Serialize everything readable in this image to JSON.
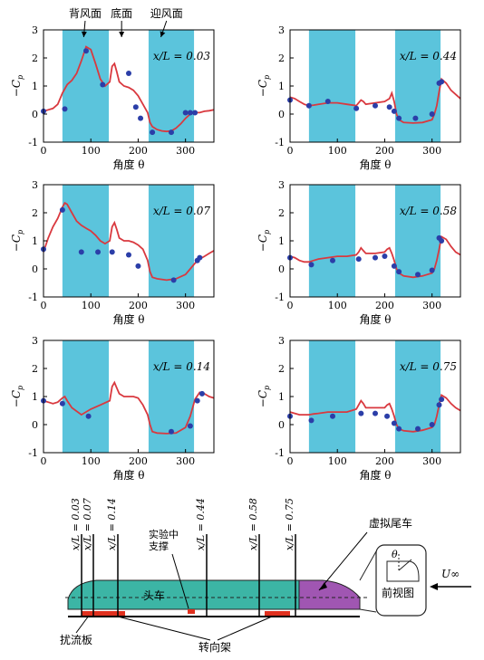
{
  "chart_data": [
    {
      "type": "line",
      "ylabel": "−C",
      "ylabel_sub": "p",
      "xlabel": "角度 θ",
      "xlim": [
        0,
        360
      ],
      "ylim": [
        -1,
        3
      ],
      "xticks": [
        0,
        100,
        200,
        300
      ],
      "yticks": [
        -1,
        0,
        1,
        2,
        3
      ],
      "annotation": "x/L = 0.03",
      "top_labels": [
        "背风面",
        "底面",
        "迎风面"
      ],
      "bands": [
        [
          40,
          138
        ],
        [
          222,
          318
        ]
      ],
      "line": {
        "x": [
          0,
          10,
          20,
          30,
          40,
          50,
          60,
          70,
          80,
          90,
          100,
          110,
          120,
          130,
          140,
          145,
          150,
          155,
          160,
          170,
          180,
          190,
          200,
          210,
          220,
          225,
          230,
          240,
          250,
          260,
          270,
          280,
          290,
          300,
          310,
          320,
          330,
          340,
          350,
          360
        ],
        "y": [
          0.1,
          0.15,
          0.2,
          0.35,
          0.75,
          1.05,
          1.2,
          1.45,
          1.9,
          2.4,
          2.3,
          1.8,
          1.25,
          1.0,
          1.15,
          1.7,
          1.8,
          1.5,
          1.15,
          1.0,
          0.95,
          0.85,
          0.65,
          0.35,
          0.05,
          -0.3,
          -0.45,
          -0.55,
          -0.6,
          -0.62,
          -0.6,
          -0.5,
          -0.35,
          -0.15,
          0.0,
          0.05,
          0.05,
          0.1,
          0.12,
          0.15
        ]
      },
      "points": {
        "x": [
          0,
          45,
          90,
          125,
          180,
          195,
          205,
          230,
          270,
          300,
          310,
          320
        ],
        "y": [
          0.1,
          0.18,
          2.25,
          1.05,
          1.45,
          0.25,
          -0.15,
          -0.65,
          -0.65,
          0.05,
          0.05,
          0.05
        ]
      }
    },
    {
      "type": "line",
      "ylabel": "−C",
      "ylabel_sub": "p",
      "xlabel": "角度 θ",
      "xlim": [
        0,
        360
      ],
      "ylim": [
        -1,
        3
      ],
      "xticks": [
        0,
        100,
        200,
        300
      ],
      "yticks": [
        -1,
        0,
        1,
        2,
        3
      ],
      "annotation": "x/L = 0.44",
      "bands": [
        [
          40,
          138
        ],
        [
          222,
          318
        ]
      ],
      "line": {
        "x": [
          0,
          10,
          20,
          30,
          40,
          50,
          60,
          80,
          100,
          120,
          140,
          145,
          150,
          155,
          160,
          180,
          200,
          210,
          215,
          220,
          225,
          230,
          240,
          260,
          280,
          300,
          305,
          310,
          315,
          320,
          330,
          340,
          350,
          360
        ],
        "y": [
          0.6,
          0.55,
          0.45,
          0.35,
          0.3,
          0.32,
          0.35,
          0.4,
          0.4,
          0.35,
          0.3,
          0.4,
          0.5,
          0.45,
          0.35,
          0.4,
          0.45,
          0.55,
          0.75,
          0.45,
          0.0,
          -0.2,
          -0.3,
          -0.32,
          -0.3,
          -0.2,
          0.0,
          0.3,
          0.8,
          1.25,
          1.1,
          0.85,
          0.7,
          0.55
        ]
      },
      "points": {
        "x": [
          0,
          40,
          80,
          140,
          180,
          210,
          220,
          230,
          265,
          300,
          315,
          320
        ],
        "y": [
          0.5,
          0.3,
          0.45,
          0.2,
          0.3,
          0.25,
          0.1,
          -0.15,
          -0.15,
          0.0,
          1.1,
          1.15
        ]
      }
    },
    {
      "type": "line",
      "ylabel": "−C",
      "ylabel_sub": "p",
      "xlabel": "角度 θ",
      "xlim": [
        0,
        360
      ],
      "ylim": [
        -1,
        3
      ],
      "xticks": [
        0,
        100,
        200,
        300
      ],
      "yticks": [
        -1,
        0,
        1,
        2,
        3
      ],
      "annotation": "x/L = 0.07",
      "bands": [
        [
          40,
          138
        ],
        [
          222,
          318
        ]
      ],
      "line": {
        "x": [
          0,
          10,
          20,
          30,
          40,
          45,
          50,
          60,
          70,
          80,
          90,
          100,
          110,
          120,
          130,
          140,
          145,
          150,
          155,
          160,
          170,
          180,
          190,
          200,
          210,
          220,
          225,
          230,
          240,
          260,
          280,
          300,
          310,
          320,
          330,
          340,
          350,
          360
        ],
        "y": [
          0.6,
          1.1,
          1.5,
          1.8,
          2.2,
          2.35,
          2.3,
          2.0,
          1.7,
          1.55,
          1.45,
          1.35,
          1.2,
          1.0,
          0.9,
          1.0,
          1.5,
          1.65,
          1.4,
          1.1,
          1.0,
          1.0,
          0.95,
          0.85,
          0.7,
          0.3,
          -0.1,
          -0.3,
          -0.35,
          -0.4,
          -0.35,
          -0.2,
          0.0,
          0.2,
          0.35,
          0.45,
          0.55,
          0.65
        ]
      },
      "points": {
        "x": [
          0,
          40,
          80,
          115,
          145,
          180,
          200,
          275,
          325,
          330
        ],
        "y": [
          0.7,
          2.1,
          0.6,
          0.6,
          0.6,
          0.5,
          0.1,
          -0.4,
          0.3,
          0.4
        ]
      }
    },
    {
      "type": "line",
      "ylabel": "−C",
      "ylabel_sub": "p",
      "xlabel": "角度 θ",
      "xlim": [
        0,
        360
      ],
      "ylim": [
        -1,
        3
      ],
      "xticks": [
        0,
        100,
        200,
        300
      ],
      "yticks": [
        -1,
        0,
        1,
        2,
        3
      ],
      "annotation": "x/L = 0.58",
      "bands": [
        [
          40,
          138
        ],
        [
          222,
          318
        ]
      ],
      "line": {
        "x": [
          0,
          10,
          20,
          30,
          40,
          50,
          60,
          80,
          100,
          120,
          140,
          145,
          150,
          155,
          160,
          180,
          200,
          205,
          210,
          215,
          220,
          225,
          230,
          240,
          260,
          280,
          300,
          305,
          310,
          315,
          320,
          330,
          340,
          350,
          360
        ],
        "y": [
          0.45,
          0.4,
          0.3,
          0.25,
          0.25,
          0.3,
          0.35,
          0.4,
          0.45,
          0.45,
          0.5,
          0.6,
          0.75,
          0.65,
          0.55,
          0.55,
          0.6,
          0.7,
          0.75,
          0.55,
          0.3,
          0.0,
          -0.15,
          -0.25,
          -0.3,
          -0.25,
          -0.15,
          0.0,
          0.3,
          0.7,
          1.15,
          1.05,
          0.8,
          0.6,
          0.5
        ]
      },
      "points": {
        "x": [
          0,
          45,
          90,
          145,
          180,
          200,
          220,
          230,
          270,
          300,
          315,
          320
        ],
        "y": [
          0.4,
          0.15,
          0.3,
          0.35,
          0.4,
          0.45,
          0.1,
          -0.1,
          -0.2,
          -0.05,
          1.1,
          1.0
        ]
      }
    },
    {
      "type": "line",
      "ylabel": "−C",
      "ylabel_sub": "p",
      "xlabel": "角度 θ",
      "xlim": [
        0,
        360
      ],
      "ylim": [
        -1,
        3
      ],
      "xticks": [
        0,
        100,
        200,
        300
      ],
      "yticks": [
        -1,
        0,
        1,
        2,
        3
      ],
      "annotation": "x/L = 0.14",
      "bands": [
        [
          40,
          138
        ],
        [
          222,
          318
        ]
      ],
      "line": {
        "x": [
          0,
          10,
          20,
          30,
          40,
          45,
          50,
          60,
          80,
          100,
          120,
          140,
          145,
          150,
          155,
          160,
          170,
          180,
          190,
          200,
          210,
          220,
          225,
          230,
          240,
          260,
          280,
          300,
          310,
          320,
          330,
          340,
          350,
          360
        ],
        "y": [
          0.85,
          0.8,
          0.75,
          0.8,
          0.95,
          1.0,
          0.85,
          0.6,
          0.35,
          0.55,
          0.7,
          0.85,
          1.35,
          1.5,
          1.3,
          1.1,
          1.0,
          1.0,
          1.0,
          0.95,
          0.7,
          0.35,
          0.0,
          -0.25,
          -0.3,
          -0.32,
          -0.3,
          -0.1,
          0.3,
          0.9,
          1.15,
          1.1,
          1.0,
          0.95
        ]
      },
      "points": {
        "x": [
          0,
          40,
          95,
          270,
          310,
          325,
          335
        ],
        "y": [
          0.85,
          0.75,
          0.3,
          -0.25,
          -0.05,
          0.85,
          1.1
        ]
      }
    },
    {
      "type": "line",
      "ylabel": "−C",
      "ylabel_sub": "p",
      "xlabel": "角度 θ",
      "xlim": [
        0,
        360
      ],
      "ylim": [
        -1,
        3
      ],
      "xticks": [
        0,
        100,
        200,
        300
      ],
      "yticks": [
        -1,
        0,
        1,
        2,
        3
      ],
      "annotation": "x/L = 0.75",
      "bands": [
        [
          40,
          138
        ],
        [
          222,
          318
        ]
      ],
      "line": {
        "x": [
          0,
          10,
          20,
          30,
          40,
          50,
          60,
          80,
          100,
          120,
          140,
          145,
          150,
          155,
          160,
          180,
          200,
          205,
          210,
          215,
          220,
          225,
          230,
          240,
          260,
          280,
          300,
          305,
          310,
          315,
          320,
          330,
          340,
          350,
          360
        ],
        "y": [
          0.45,
          0.4,
          0.35,
          0.35,
          0.35,
          0.38,
          0.4,
          0.45,
          0.45,
          0.45,
          0.55,
          0.7,
          0.85,
          0.75,
          0.6,
          0.6,
          0.6,
          0.7,
          0.75,
          0.55,
          0.3,
          0.0,
          -0.15,
          -0.22,
          -0.25,
          -0.2,
          -0.1,
          0.0,
          0.3,
          0.7,
          1.05,
          0.95,
          0.75,
          0.6,
          0.5
        ]
      },
      "points": {
        "x": [
          0,
          45,
          90,
          150,
          180,
          205,
          220,
          230,
          270,
          300,
          315,
          320
        ],
        "y": [
          0.3,
          0.15,
          0.3,
          0.4,
          0.4,
          0.3,
          0.05,
          -0.15,
          -0.15,
          0.0,
          0.7,
          0.9
        ]
      }
    }
  ],
  "colors": {
    "band": "#5bc4dc",
    "line": "#d9393f",
    "point": "#2b3ea8",
    "train_body": "#3cb5a5",
    "train_tail": "#a056b2",
    "bogie": "#e0301e"
  },
  "diagram": {
    "section_labels": [
      "x/L = 0.03",
      "x/L = 0.07",
      "x/L = 0.14",
      "x/L = 0.44",
      "x/L = 0.58",
      "x/L = 0.75"
    ],
    "head_car": "头车",
    "virtual_tail": "虚拟尾车",
    "support": "实验中\n支撑",
    "front_view": "前视图",
    "theta": "θ",
    "wind": "U∞",
    "spoiler": "扰流板",
    "bogie": "转向架"
  }
}
